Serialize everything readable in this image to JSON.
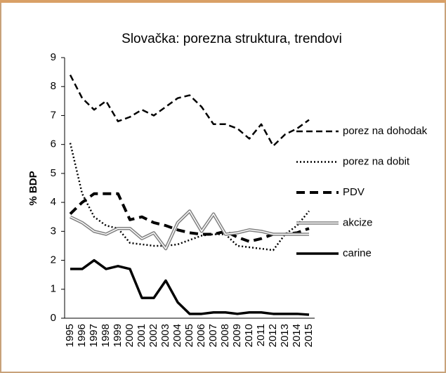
{
  "chart_data": {
    "type": "line",
    "title": "Slovačka: porezna struktura, trendovi",
    "y_label": "% BDP",
    "categories": [
      "1995",
      "1996",
      "1997",
      "1998",
      "1999",
      "2000",
      "2001",
      "2002",
      "2003",
      "2004",
      "2005",
      "2006",
      "2007",
      "2008",
      "2009",
      "2010",
      "2011",
      "2012",
      "2013",
      "2014",
      "2015"
    ],
    "ylim": [
      0,
      9
    ],
    "yticks": [
      0,
      1,
      2,
      3,
      4,
      5,
      6,
      7,
      8,
      9
    ],
    "grid": false,
    "legend": "right",
    "series": [
      {
        "name": "porez na dohodak",
        "color": "#000000",
        "style": "dashed",
        "values": [
          8.4,
          7.6,
          7.2,
          7.5,
          6.8,
          6.95,
          7.2,
          7.0,
          7.3,
          7.6,
          7.7,
          7.3,
          6.7,
          6.7,
          6.55,
          6.2,
          6.7,
          5.95,
          6.35,
          6.55,
          6.85
        ]
      },
      {
        "name": "porez na dobit",
        "color": "#000000",
        "style": "dotted",
        "values": [
          6.05,
          4.3,
          3.5,
          3.2,
          3.1,
          2.6,
          2.55,
          2.5,
          2.5,
          2.55,
          2.7,
          2.85,
          2.9,
          2.9,
          2.5,
          2.45,
          2.4,
          2.35,
          2.9,
          3.2,
          3.7
        ]
      },
      {
        "name": "PDV",
        "color": "#000000",
        "style": "thick-dashed",
        "values": [
          3.6,
          4.0,
          4.3,
          4.3,
          4.3,
          3.4,
          3.5,
          3.3,
          3.2,
          3.05,
          2.95,
          2.9,
          2.9,
          3.0,
          2.8,
          2.65,
          2.75,
          2.9,
          2.9,
          2.95,
          3.1
        ]
      },
      {
        "name": "akcize",
        "color": "#808080",
        "style": "double",
        "values": [
          3.5,
          3.3,
          3.0,
          2.9,
          3.1,
          3.1,
          2.75,
          2.95,
          2.4,
          3.3,
          3.7,
          3.0,
          3.6,
          2.9,
          2.95,
          3.05,
          3.0,
          2.9,
          2.9,
          2.9,
          2.9
        ]
      },
      {
        "name": "carine",
        "color": "#000000",
        "style": "solid",
        "values": [
          1.7,
          1.7,
          2.0,
          1.7,
          1.8,
          1.7,
          0.7,
          0.7,
          1.3,
          0.55,
          0.15,
          0.15,
          0.2,
          0.2,
          0.15,
          0.2,
          0.2,
          0.15,
          0.15,
          0.15,
          0.12
        ]
      }
    ]
  }
}
